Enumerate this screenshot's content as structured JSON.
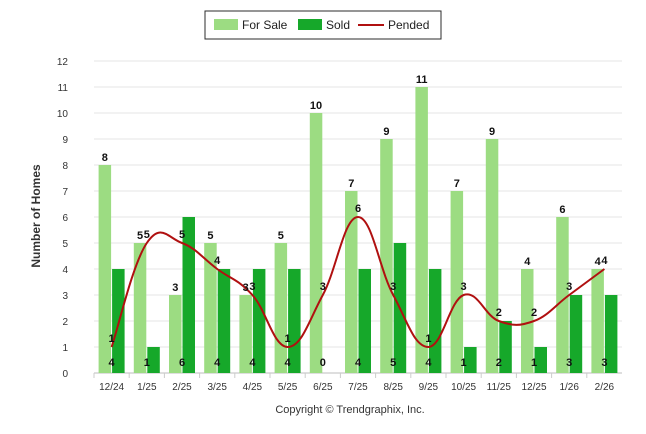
{
  "chart_data": {
    "type": "bar",
    "ylabel": "Number of Homes",
    "xlabel": "",
    "ylim": [
      0,
      12
    ],
    "yticks": [
      0,
      1,
      2,
      3,
      4,
      5,
      6,
      7,
      8,
      9,
      10,
      11,
      12
    ],
    "categories": [
      "12/24",
      "1/25",
      "2/25",
      "3/25",
      "4/25",
      "5/25",
      "6/25",
      "7/25",
      "8/25",
      "9/25",
      "10/25",
      "11/25",
      "12/25",
      "1/26",
      "2/26"
    ],
    "series": [
      {
        "name": "For Sale",
        "kind": "bar",
        "color": "#9cdc82",
        "values": [
          8,
          5,
          3,
          5,
          3,
          5,
          10,
          7,
          9,
          11,
          7,
          9,
          4,
          6,
          4
        ]
      },
      {
        "name": "Sold",
        "kind": "bar",
        "color": "#16a82a",
        "values": [
          4,
          1,
          6,
          4,
          4,
          4,
          0,
          4,
          5,
          4,
          1,
          2,
          1,
          3,
          3
        ]
      },
      {
        "name": "Pended",
        "kind": "line",
        "color": "#b01010",
        "values": [
          1,
          5,
          5,
          4,
          3,
          1,
          3,
          6,
          3,
          1,
          3,
          2,
          2,
          3,
          4
        ]
      }
    ],
    "legend": {
      "position": "top-center"
    },
    "copyright": "Copyright © Trendgraphix, Inc."
  }
}
